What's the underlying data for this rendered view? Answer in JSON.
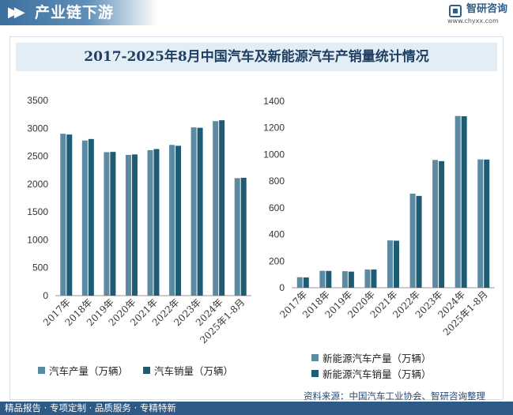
{
  "header": {
    "title": "产业链下游",
    "brand_name": "智研咨询",
    "brand_url": "www.chyxx.com"
  },
  "colors": {
    "series_light": "#5d8aa3",
    "series_dark": "#1e5c73",
    "accent": "#3b6f9e",
    "footer_bg": "#2e5a86"
  },
  "chart_data": [
    {
      "type": "bar",
      "title": "2017-2025年8月中国汽车及新能源汽车产销量统计情况",
      "categories": [
        "2017年",
        "2018年",
        "2019年",
        "2020年",
        "2021年",
        "2022年",
        "2023年",
        "2024年",
        "2025年1-8月"
      ],
      "series": [
        {
          "name": "汽车产量（万辆）",
          "color": "#5d8aa3",
          "values": [
            2902,
            2781,
            2572,
            2523,
            2608,
            2702,
            3016,
            3128,
            2106
          ]
        },
        {
          "name": "汽车销量（万辆）",
          "color": "#1e5c73",
          "values": [
            2888,
            2808,
            2577,
            2531,
            2628,
            2686,
            3009,
            3144,
            2113
          ]
        }
      ],
      "yticks": [
        0,
        500,
        1000,
        1500,
        2000,
        2500,
        3000,
        3500
      ],
      "ylim": [
        0,
        3500
      ],
      "xlabel": "",
      "ylabel": "",
      "grid": false,
      "legend": "bottom"
    },
    {
      "type": "bar",
      "categories": [
        "2017年",
        "2018年",
        "2019年",
        "2020年",
        "2021年",
        "2022年",
        "2023年",
        "2024年",
        "2025年1-8月"
      ],
      "series": [
        {
          "name": "新能源汽车产量（万辆）",
          "color": "#5d8aa3",
          "values": [
            79,
            127,
            124,
            137,
            355,
            706,
            959,
            1289,
            963
          ]
        },
        {
          "name": "新能源汽车销量（万辆）",
          "color": "#1e5c73",
          "values": [
            77,
            126,
            121,
            137,
            353,
            689,
            950,
            1287,
            962
          ]
        }
      ],
      "yticks": [
        0,
        200,
        400,
        600,
        800,
        1000,
        1200,
        1400
      ],
      "ylim": [
        0,
        1400
      ],
      "xlabel": "",
      "ylabel": "",
      "grid": false,
      "legend": "bottom"
    }
  ],
  "source": "资料来源：中国汽车工业协会、智研咨询整理",
  "footer": {
    "tagline": "精品报告 · 专项定制 · 品质服务 · 专精特新"
  }
}
